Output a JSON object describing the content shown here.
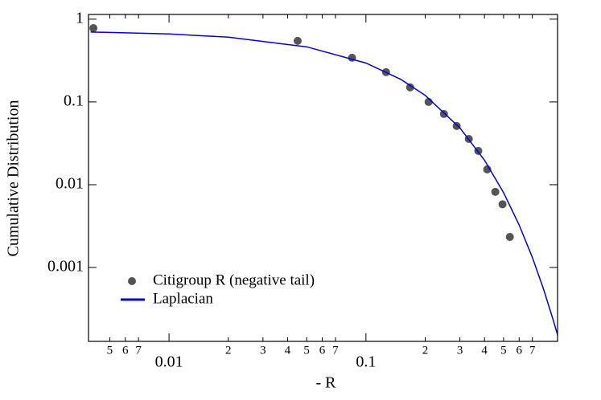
{
  "chart_data": {
    "type": "scatter",
    "xlabel": "- R",
    "ylabel": "Cumulative Distribution",
    "xscale": "log",
    "yscale": "log",
    "xlim": [
      0.0039,
      0.94
    ],
    "ylim": [
      0.000128,
      1.14
    ],
    "xticks": [
      {
        "value": 0.005,
        "label": "5"
      },
      {
        "value": 0.006,
        "label": "6"
      },
      {
        "value": 0.007,
        "label": "7"
      },
      0.01,
      {
        "value": 0.02,
        "label": "2"
      },
      {
        "value": 0.03,
        "label": "3"
      },
      {
        "value": 0.04,
        "label": "4"
      },
      {
        "value": 0.05,
        "label": "5"
      },
      {
        "value": 0.06,
        "label": "6"
      },
      {
        "value": 0.07,
        "label": "7"
      },
      0.1,
      {
        "value": 0.2,
        "label": "2"
      },
      {
        "value": 0.3,
        "label": "3"
      },
      {
        "value": 0.4,
        "label": "4"
      },
      {
        "value": 0.5,
        "label": "5"
      },
      {
        "value": 0.6,
        "label": "6"
      },
      {
        "value": 0.7,
        "label": "7"
      }
    ],
    "yticks": [
      1,
      0.1,
      0.01,
      0.001
    ],
    "legend": "lower left",
    "series": [
      {
        "name": "Citigroup R (negative tail)",
        "kind": "points",
        "color": "#555555",
        "x": [
          0.00413,
          0.045,
          0.085,
          0.1265,
          0.1677,
          0.208,
          0.249,
          0.289,
          0.333,
          0.372,
          0.413,
          0.454,
          0.494,
          0.538
        ],
        "values": [
          0.78,
          0.547,
          0.342,
          0.229,
          0.15,
          0.1,
          0.0715,
          0.0512,
          0.0357,
          0.0256,
          0.0153,
          0.0082,
          0.0058,
          0.00234
        ]
      },
      {
        "name": "Laplacian",
        "kind": "line",
        "color": "#0000dd",
        "x": [
          0.004,
          0.01,
          0.02,
          0.05,
          0.1,
          0.15,
          0.2,
          0.3,
          0.4,
          0.5,
          0.6,
          0.7,
          0.8,
          0.9,
          0.94
        ],
        "values": [
          0.7,
          0.663,
          0.606,
          0.463,
          0.295,
          0.188,
          0.12,
          0.0486,
          0.0198,
          0.00802,
          0.00326,
          0.001325,
          0.000538,
          0.000219,
          0.000153
        ]
      }
    ]
  }
}
